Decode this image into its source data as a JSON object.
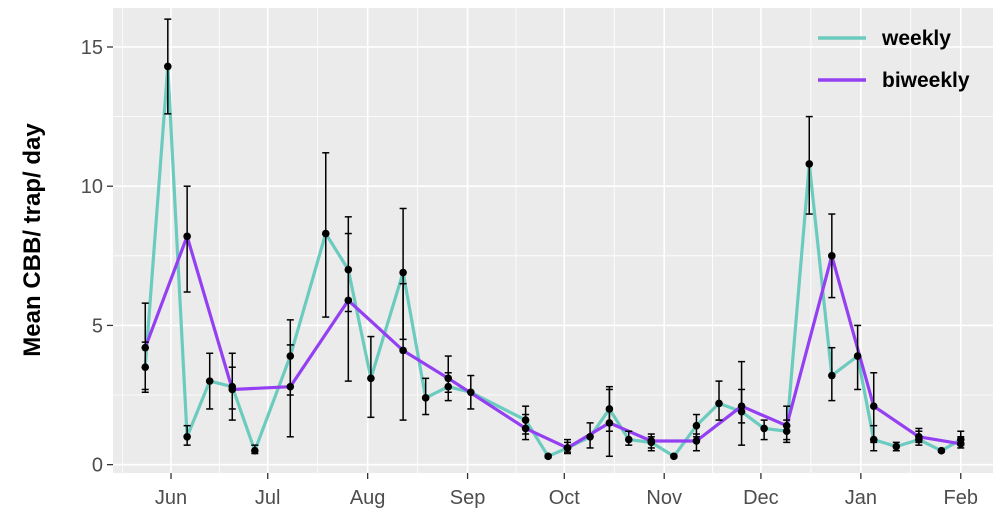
{
  "chart_data": {
    "type": "line",
    "title": "",
    "xlabel": "",
    "ylabel": "Mean CBB/ trap/ day",
    "ylim": [
      -0.3,
      16.4
    ],
    "yticks": [
      0,
      5,
      10,
      15
    ],
    "ytick_labels": [
      "0",
      "5",
      "10",
      "15"
    ],
    "xlim": [
      "2019-05-14",
      "2020-02-11"
    ],
    "xticks": [
      "2019-06-01",
      "2019-07-01",
      "2019-08-01",
      "2019-09-01",
      "2019-10-01",
      "2019-11-01",
      "2019-12-01",
      "2020-01-01",
      "2020-02-01"
    ],
    "xtick_labels": [
      "Jun",
      "Jul",
      "Aug",
      "Sep",
      "Oct",
      "Nov",
      "Dec",
      "Jan",
      "Feb"
    ],
    "grid": true,
    "legend_position": "top-right",
    "series": [
      {
        "name": "weekly",
        "color": "#6ccbbf",
        "points": [
          {
            "x": "2019-05-24",
            "y": 3.5,
            "lo": 2.7,
            "hi": 4.4
          },
          {
            "x": "2019-05-31",
            "y": 14.3,
            "lo": 12.6,
            "hi": 16.0
          },
          {
            "x": "2019-06-06",
            "y": 1.0,
            "lo": 0.7,
            "hi": 1.4
          },
          {
            "x": "2019-06-13",
            "y": 3.0,
            "lo": 2.0,
            "hi": 4.0
          },
          {
            "x": "2019-06-20",
            "y": 2.8,
            "lo": 1.6,
            "hi": 4.0
          },
          {
            "x": "2019-06-27",
            "y": 0.5,
            "lo": 0.4,
            "hi": 0.7
          },
          {
            "x": "2019-07-08",
            "y": 3.9,
            "lo": 1.0,
            "hi": 5.2
          },
          {
            "x": "2019-07-19",
            "y": 8.3,
            "lo": 5.3,
            "hi": 11.2
          },
          {
            "x": "2019-07-26",
            "y": 7.0,
            "lo": 5.5,
            "hi": 8.3
          },
          {
            "x": "2019-08-02",
            "y": 3.1,
            "lo": 1.7,
            "hi": 4.6
          },
          {
            "x": "2019-08-12",
            "y": 6.9,
            "lo": 4.5,
            "hi": 9.2
          },
          {
            "x": "2019-08-19",
            "y": 2.4,
            "lo": 1.8,
            "hi": 3.1
          },
          {
            "x": "2019-08-26",
            "y": 2.8,
            "lo": 2.3,
            "hi": 3.3
          },
          {
            "x": "2019-09-02",
            "y": 2.6,
            "lo": 2.0,
            "hi": 3.2
          },
          {
            "x": "2019-09-19",
            "y": 1.6,
            "lo": 1.1,
            "hi": 2.1
          },
          {
            "x": "2019-09-26",
            "y": 0.3,
            "lo": 0.25,
            "hi": 0.35
          },
          {
            "x": "2019-10-02",
            "y": 0.6,
            "lo": 0.4,
            "hi": 0.9
          },
          {
            "x": "2019-10-09",
            "y": 1.0,
            "lo": 0.6,
            "hi": 1.5
          },
          {
            "x": "2019-10-15",
            "y": 2.0,
            "lo": 1.2,
            "hi": 2.8
          },
          {
            "x": "2019-10-21",
            "y": 0.9,
            "lo": 0.7,
            "hi": 1.2
          },
          {
            "x": "2019-10-28",
            "y": 0.8,
            "lo": 0.5,
            "hi": 1.0
          },
          {
            "x": "2019-11-04",
            "y": 0.3,
            "lo": 0.25,
            "hi": 0.35
          },
          {
            "x": "2019-11-11",
            "y": 1.4,
            "lo": 1.0,
            "hi": 1.8
          },
          {
            "x": "2019-11-18",
            "y": 2.2,
            "lo": 1.6,
            "hi": 3.0
          },
          {
            "x": "2019-11-25",
            "y": 1.9,
            "lo": 0.7,
            "hi": 3.7
          },
          {
            "x": "2019-12-02",
            "y": 1.3,
            "lo": 0.9,
            "hi": 1.6
          },
          {
            "x": "2019-12-09",
            "y": 1.2,
            "lo": 0.8,
            "hi": 1.6
          },
          {
            "x": "2019-12-16",
            "y": 10.8,
            "lo": 9.0,
            "hi": 12.5
          },
          {
            "x": "2019-12-23",
            "y": 3.2,
            "lo": 2.3,
            "hi": 4.2
          },
          {
            "x": "2019-12-31",
            "y": 3.9,
            "lo": 2.7,
            "hi": 5.0
          },
          {
            "x": "2020-01-05",
            "y": 0.9,
            "lo": 0.5,
            "hi": 1.4
          },
          {
            "x": "2020-01-12",
            "y": 0.65,
            "lo": 0.5,
            "hi": 0.8
          },
          {
            "x": "2020-01-19",
            "y": 0.9,
            "lo": 0.7,
            "hi": 1.2
          },
          {
            "x": "2020-01-26",
            "y": 0.5,
            "lo": 0.45,
            "hi": 0.55
          },
          {
            "x": "2020-02-01",
            "y": 0.9,
            "lo": 0.7,
            "hi": 1.2
          }
        ]
      },
      {
        "name": "biweekly",
        "color": "#9440f2",
        "points": [
          {
            "x": "2019-05-24",
            "y": 4.2,
            "lo": 2.6,
            "hi": 5.8
          },
          {
            "x": "2019-06-06",
            "y": 8.2,
            "lo": 6.2,
            "hi": 10.0
          },
          {
            "x": "2019-06-20",
            "y": 2.7,
            "lo": 2.0,
            "hi": 3.5
          },
          {
            "x": "2019-07-08",
            "y": 2.8,
            "lo": 2.5,
            "hi": 4.3
          },
          {
            "x": "2019-07-26",
            "y": 5.9,
            "lo": 3.0,
            "hi": 8.9
          },
          {
            "x": "2019-08-12",
            "y": 4.1,
            "lo": 1.6,
            "hi": 6.5
          },
          {
            "x": "2019-08-26",
            "y": 3.1,
            "lo": 2.6,
            "hi": 3.9
          },
          {
            "x": "2019-09-19",
            "y": 1.3,
            "lo": 0.9,
            "hi": 1.8
          },
          {
            "x": "2019-10-02",
            "y": 0.6,
            "lo": 0.45,
            "hi": 0.8
          },
          {
            "x": "2019-10-15",
            "y": 1.5,
            "lo": 0.3,
            "hi": 2.7
          },
          {
            "x": "2019-10-28",
            "y": 0.85,
            "lo": 0.6,
            "hi": 1.1
          },
          {
            "x": "2019-11-11",
            "y": 0.85,
            "lo": 0.5,
            "hi": 1.1
          },
          {
            "x": "2019-11-25",
            "y": 2.1,
            "lo": 1.5,
            "hi": 2.7
          },
          {
            "x": "2019-12-09",
            "y": 1.4,
            "lo": 0.9,
            "hi": 2.1
          },
          {
            "x": "2019-12-23",
            "y": 7.5,
            "lo": 6.0,
            "hi": 9.0
          },
          {
            "x": "2020-01-05",
            "y": 2.1,
            "lo": 0.8,
            "hi": 3.3
          },
          {
            "x": "2020-01-19",
            "y": 1.0,
            "lo": 0.8,
            "hi": 1.3
          },
          {
            "x": "2020-02-01",
            "y": 0.75,
            "lo": 0.6,
            "hi": 1.0
          }
        ]
      }
    ]
  }
}
